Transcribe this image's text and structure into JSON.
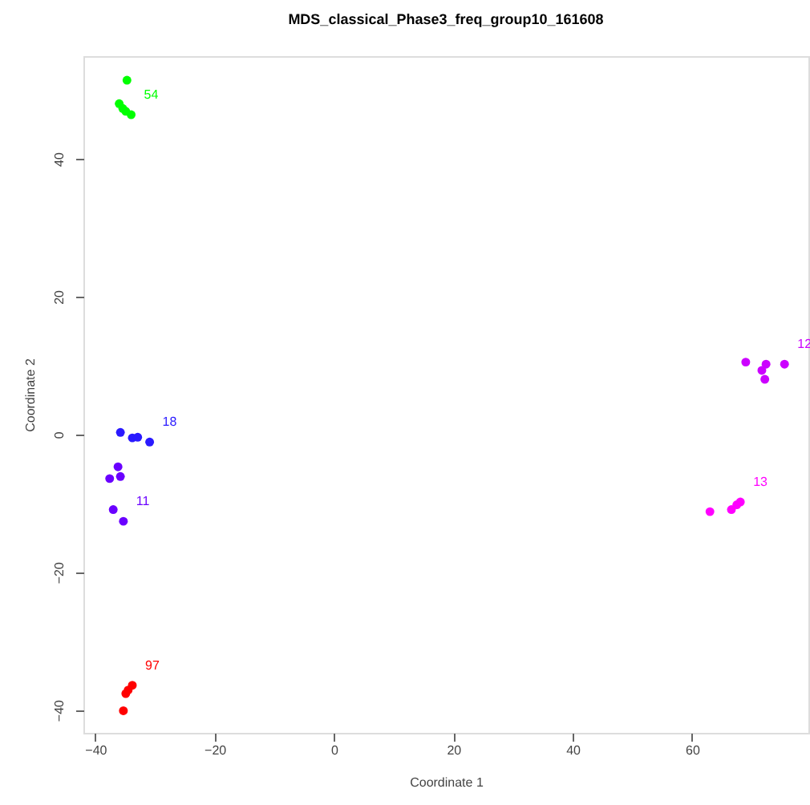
{
  "chart_data": {
    "type": "scatter",
    "title": "MDS_classical_Phase3_freq_group10_161608",
    "xlabel": "Coordinate 1",
    "ylabel": "Coordinate 2",
    "xlim": [
      -42,
      79.5
    ],
    "ylim": [
      -43.3,
      54.9
    ],
    "xticks": [
      -40,
      -20,
      0,
      20,
      40,
      60
    ],
    "yticks": [
      -40,
      -20,
      0,
      20,
      40
    ],
    "grid": false,
    "legend": false,
    "marker": "circle",
    "series": [
      {
        "name": "54",
        "color": "#00ff00",
        "x": [
          -34.7,
          -36.0,
          -35.4,
          -34.9,
          -34.0
        ],
        "values": [
          51.4,
          48.0,
          47.3,
          46.9,
          46.4
        ]
      },
      {
        "name": "18",
        "color": "#2a1aff",
        "x": [
          -35.8,
          -33.8,
          -32.9,
          -30.9
        ],
        "values": [
          0.3,
          -0.5,
          -0.4,
          -1.1
        ]
      },
      {
        "name": "11",
        "color": "#6a00ff",
        "x": [
          -36.2,
          -37.6,
          -35.8,
          -37.0,
          -35.3
        ],
        "values": [
          -4.7,
          -6.4,
          -6.1,
          -10.9,
          -12.6
        ]
      },
      {
        "name": "12",
        "color": "#cc00ff",
        "x": [
          69.0,
          72.4,
          71.7,
          72.2,
          75.5
        ],
        "values": [
          10.5,
          10.2,
          9.3,
          8.0,
          10.2
        ]
      },
      {
        "name": "13",
        "color": "#ff00ff",
        "x": [
          63.0,
          66.6,
          67.5,
          68.1
        ],
        "values": [
          -11.2,
          -10.9,
          -10.2,
          -9.8
        ]
      },
      {
        "name": "97",
        "color": "#ff0000",
        "x": [
          -33.8,
          -34.5,
          -34.9,
          -35.3
        ],
        "values": [
          -36.4,
          -37.1,
          -37.6,
          -40.1
        ]
      }
    ]
  }
}
